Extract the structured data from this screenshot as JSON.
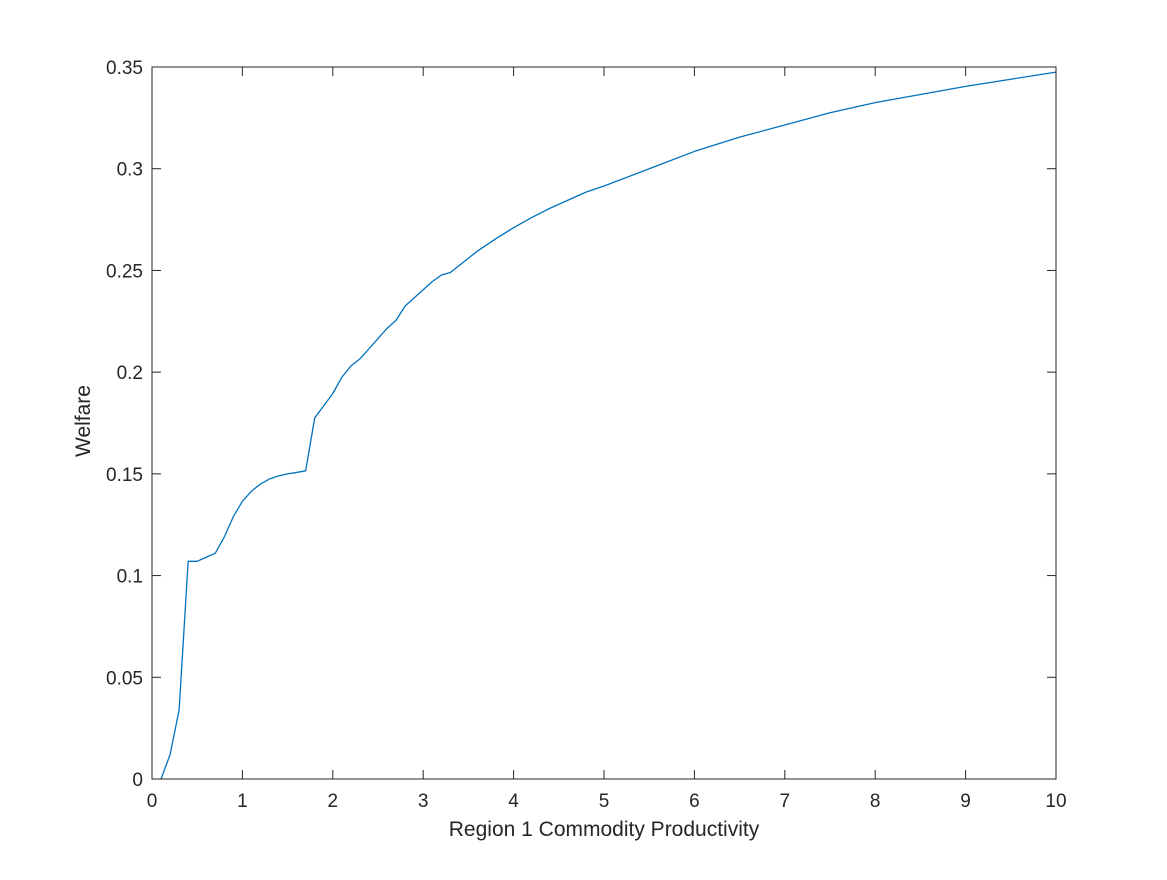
{
  "chart_data": {
    "type": "line",
    "title": "",
    "xlabel": "Region 1 Commodity Productivity",
    "ylabel": "Welfare",
    "xlim": [
      0,
      10
    ],
    "ylim": [
      0,
      0.35
    ],
    "grid": false,
    "line_color": "#0072BD",
    "axis_color": "#262626",
    "x_ticks": [
      {
        "value": 0,
        "label": "0"
      },
      {
        "value": 1,
        "label": "1"
      },
      {
        "value": 2,
        "label": "2"
      },
      {
        "value": 3,
        "label": "3"
      },
      {
        "value": 4,
        "label": "4"
      },
      {
        "value": 5,
        "label": "5"
      },
      {
        "value": 6,
        "label": "6"
      },
      {
        "value": 7,
        "label": "7"
      },
      {
        "value": 8,
        "label": "8"
      },
      {
        "value": 9,
        "label": "9"
      },
      {
        "value": 10,
        "label": "10"
      }
    ],
    "y_ticks": [
      {
        "value": 0,
        "label": "0"
      },
      {
        "value": 0.05,
        "label": "0.05"
      },
      {
        "value": 0.1,
        "label": "0.1"
      },
      {
        "value": 0.15,
        "label": "0.15"
      },
      {
        "value": 0.2,
        "label": "0.2"
      },
      {
        "value": 0.25,
        "label": "0.25"
      },
      {
        "value": 0.3,
        "label": "0.3"
      },
      {
        "value": 0.35,
        "label": "0.35"
      }
    ],
    "series": [
      {
        "x": [
          0.1,
          0.2,
          0.3,
          0.4,
          0.5,
          0.6,
          0.7,
          0.8,
          0.9,
          1.0,
          1.1,
          1.2,
          1.3,
          1.4,
          1.5,
          1.6,
          1.7,
          1.8,
          1.9,
          2.0,
          2.1,
          2.2,
          2.3,
          2.4,
          2.5,
          2.6,
          2.7,
          2.8,
          2.9,
          3.0,
          3.1,
          3.2,
          3.3,
          3.4,
          3.5,
          3.6,
          3.8,
          4.0,
          4.2,
          4.4,
          4.6,
          4.8,
          5.0,
          5.5,
          6.0,
          6.5,
          7.0,
          7.5,
          8.0,
          8.5,
          9.0,
          9.5,
          10.0
        ],
        "values": [
          0.0,
          0.012,
          0.034,
          0.107,
          0.107,
          0.109,
          0.111,
          0.119,
          0.129,
          0.1365,
          0.1415,
          0.145,
          0.1475,
          0.149,
          0.15,
          0.1507,
          0.1515,
          0.1775,
          0.1835,
          0.1895,
          0.1975,
          0.203,
          0.2065,
          0.2115,
          0.2165,
          0.2215,
          0.2255,
          0.2325,
          0.2365,
          0.2405,
          0.2445,
          0.2477,
          0.249,
          0.2525,
          0.256,
          0.2595,
          0.2655,
          0.271,
          0.276,
          0.2805,
          0.2845,
          0.2885,
          0.2915,
          0.3,
          0.3085,
          0.3155,
          0.3215,
          0.3275,
          0.3325,
          0.3365,
          0.3405,
          0.344,
          0.3475
        ]
      }
    ]
  }
}
